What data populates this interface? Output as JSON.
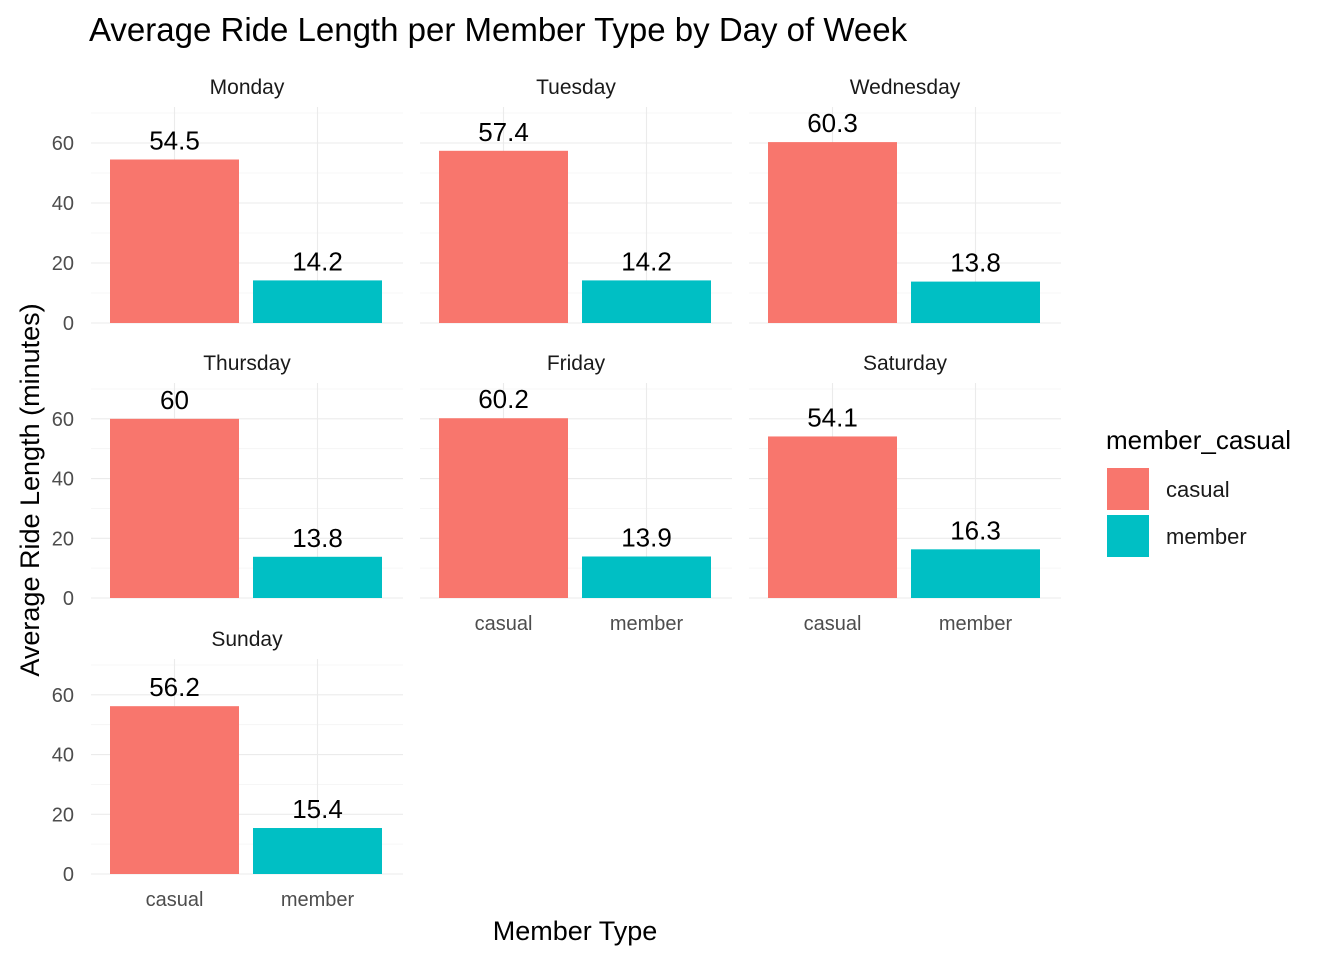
{
  "chart_data": {
    "type": "bar",
    "title": "Average Ride Length per Member Type by Day of Week",
    "xlabel": "Member Type",
    "ylabel": "Average Ride Length (minutes)",
    "categories": [
      "casual",
      "member"
    ],
    "ylim": [
      0,
      72
    ],
    "yticks": [
      "0",
      "20",
      "40",
      "60"
    ],
    "grid": true,
    "legend": {
      "title": "member_casual",
      "placement": "right",
      "entries": [
        {
          "label": "casual",
          "color": "#F8766D"
        },
        {
          "label": "member",
          "color": "#00BFC4"
        }
      ]
    },
    "panels": [
      {
        "day": "Monday",
        "values": [
          54.5,
          14.2
        ],
        "labels": [
          "54.5",
          "14.2"
        ]
      },
      {
        "day": "Tuesday",
        "values": [
          57.4,
          14.2
        ],
        "labels": [
          "57.4",
          "14.2"
        ]
      },
      {
        "day": "Wednesday",
        "values": [
          60.3,
          13.8
        ],
        "labels": [
          "60.3",
          "13.8"
        ]
      },
      {
        "day": "Thursday",
        "values": [
          60,
          13.8
        ],
        "labels": [
          "60",
          "13.8"
        ]
      },
      {
        "day": "Friday",
        "values": [
          60.2,
          13.9
        ],
        "labels": [
          "60.2",
          "13.9"
        ]
      },
      {
        "day": "Saturday",
        "values": [
          54.1,
          16.3
        ],
        "labels": [
          "54.1",
          "16.3"
        ]
      },
      {
        "day": "Sunday",
        "values": [
          56.2,
          15.4
        ],
        "labels": [
          "56.2",
          "15.4"
        ]
      }
    ]
  }
}
